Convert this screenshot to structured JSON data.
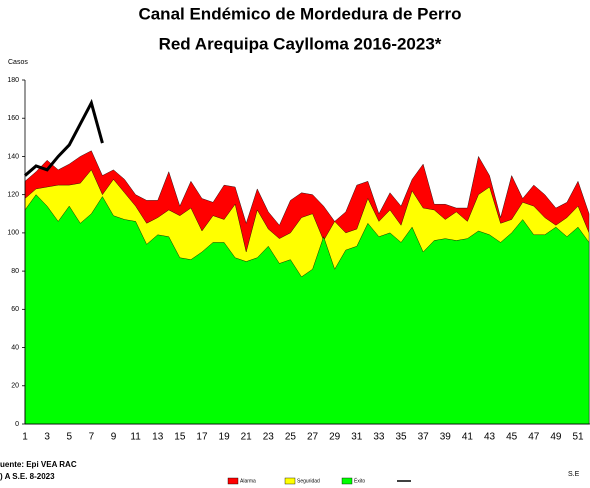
{
  "chart_data": {
    "type": "area",
    "title": [
      "Canal Endémico de Mordedura de Perro",
      "Red Arequipa Caylloma 2016-2023*"
    ],
    "y_label": "Casos",
    "x_label": "S.E",
    "source": [
      "uente: Epi VEA RAC",
      ") A S.E. 8-2023"
    ],
    "categories": [
      1,
      null,
      3,
      null,
      5,
      null,
      7,
      null,
      9,
      null,
      11,
      null,
      13,
      null,
      15,
      null,
      17,
      null,
      19,
      null,
      21,
      null,
      23,
      null,
      25,
      null,
      27,
      null,
      29,
      null,
      31,
      null,
      33,
      null,
      35,
      null,
      37,
      null,
      39,
      null,
      41,
      null,
      43,
      null,
      45,
      null,
      47,
      null,
      49,
      null,
      51,
      null
    ],
    "ylim": [
      0,
      180
    ],
    "yticks": [
      0,
      20,
      40,
      60,
      80,
      100,
      120,
      140,
      160,
      180
    ],
    "series": [
      {
        "name": "Alarma",
        "color": "#ff0000",
        "kind": "area",
        "values": [
          127,
          132,
          138,
          133,
          136,
          140,
          143,
          130,
          133,
          128,
          120,
          117,
          117,
          132,
          114,
          127,
          118,
          116,
          125,
          124,
          105,
          123,
          111,
          104,
          117,
          121,
          120,
          114,
          106,
          111,
          125,
          127,
          110,
          121,
          114,
          128,
          136,
          115,
          115,
          113,
          113,
          140,
          130,
          108,
          130,
          118,
          125,
          120,
          113,
          116,
          127,
          110
        ]
      },
      {
        "name": "Seguridad",
        "color": "#ffff00",
        "kind": "area",
        "values": [
          118,
          123,
          124,
          125,
          125,
          126,
          133,
          120,
          128,
          121,
          114,
          105,
          108,
          112,
          109,
          113,
          101,
          109,
          107,
          115,
          90,
          112,
          102,
          97,
          100,
          108,
          110,
          96,
          106,
          100,
          102,
          118,
          106,
          112,
          104,
          122,
          113,
          112,
          107,
          111,
          106,
          120,
          124,
          105,
          107,
          116,
          114,
          108,
          104,
          108,
          114,
          100
        ]
      },
      {
        "name": "Éxito",
        "color": "#00ff00",
        "kind": "area",
        "values": [
          112,
          120,
          114,
          106,
          114,
          105,
          110,
          119,
          109,
          107,
          106,
          94,
          99,
          98,
          87,
          86,
          90,
          95,
          95,
          87,
          85,
          87,
          93,
          84,
          86,
          77,
          81,
          98,
          81,
          91,
          93,
          105,
          98,
          100,
          95,
          103,
          90,
          96,
          97,
          96,
          97,
          101,
          99,
          95,
          100,
          107,
          99,
          99,
          103,
          98,
          103,
          95
        ]
      },
      {
        "color": "#000000",
        "kind": "line",
        "values": [
          130,
          135,
          133,
          140,
          146,
          157,
          168,
          147,
          null,
          null,
          null,
          null,
          null,
          null,
          null,
          null,
          null,
          null,
          null,
          null,
          null,
          null,
          null,
          null,
          null,
          null,
          null,
          null,
          null,
          null,
          null,
          null,
          null,
          null,
          null,
          null,
          null,
          null,
          null,
          null,
          null,
          null,
          null,
          null,
          null,
          null,
          null,
          null,
          null,
          null,
          null,
          null
        ]
      }
    ]
  }
}
